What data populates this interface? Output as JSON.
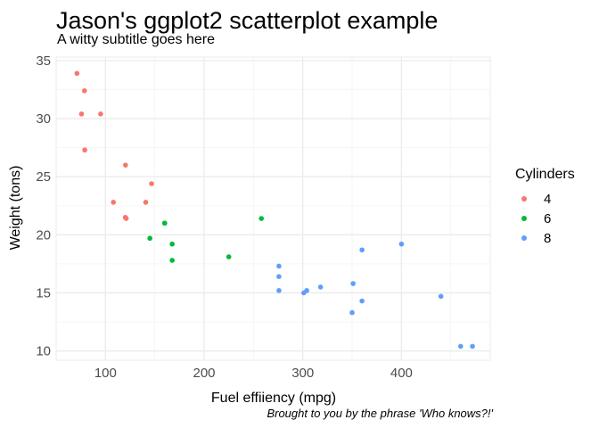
{
  "title": "Jason's ggplot2 scatterplot example",
  "subtitle": "A witty subtitle goes here",
  "caption": "Brought to you by the phrase 'Who knows?!'",
  "legend": {
    "title": "Cylinders",
    "items": [
      {
        "label": "4",
        "color": "#F8766D"
      },
      {
        "label": "6",
        "color": "#00BA38"
      },
      {
        "label": "8",
        "color": "#619CFF"
      }
    ]
  },
  "chart_data": {
    "type": "scatter",
    "xlabel": "Fuel effiiency (mpg)",
    "ylabel": "Weight (tons)",
    "xlim": [
      50,
      490
    ],
    "ylim": [
      9.2,
      35.3
    ],
    "x_ticks": [
      100,
      200,
      300,
      400
    ],
    "y_ticks": [
      10,
      15,
      20,
      25,
      30,
      35
    ],
    "grid": true,
    "legend_position": "right",
    "series": [
      {
        "name": "4",
        "color": "#F8766D",
        "points": [
          {
            "x": 71.1,
            "y": 33.9
          },
          {
            "x": 78.7,
            "y": 32.4
          },
          {
            "x": 75.7,
            "y": 30.4
          },
          {
            "x": 95.1,
            "y": 30.4
          },
          {
            "x": 79.0,
            "y": 27.3
          },
          {
            "x": 120.3,
            "y": 26.0
          },
          {
            "x": 146.7,
            "y": 24.4
          },
          {
            "x": 108.0,
            "y": 22.8
          },
          {
            "x": 140.8,
            "y": 22.8
          },
          {
            "x": 120.1,
            "y": 21.5
          },
          {
            "x": 121.0,
            "y": 21.4
          }
        ]
      },
      {
        "name": "6",
        "color": "#00BA38",
        "points": [
          {
            "x": 258.0,
            "y": 21.4
          },
          {
            "x": 160.0,
            "y": 21.0
          },
          {
            "x": 160.0,
            "y": 21.0
          },
          {
            "x": 145.0,
            "y": 19.7
          },
          {
            "x": 167.6,
            "y": 19.2
          },
          {
            "x": 225.0,
            "y": 18.1
          },
          {
            "x": 167.6,
            "y": 17.8
          }
        ]
      },
      {
        "name": "8",
        "color": "#619CFF",
        "points": [
          {
            "x": 400.0,
            "y": 19.2
          },
          {
            "x": 360.0,
            "y": 18.7
          },
          {
            "x": 275.8,
            "y": 17.3
          },
          {
            "x": 275.8,
            "y": 16.4
          },
          {
            "x": 351.0,
            "y": 15.8
          },
          {
            "x": 318.0,
            "y": 15.5
          },
          {
            "x": 275.8,
            "y": 15.2
          },
          {
            "x": 304.0,
            "y": 15.2
          },
          {
            "x": 301.0,
            "y": 15.0
          },
          {
            "x": 440.0,
            "y": 14.7
          },
          {
            "x": 360.0,
            "y": 14.3
          },
          {
            "x": 350.0,
            "y": 13.3
          },
          {
            "x": 472.0,
            "y": 10.4
          },
          {
            "x": 460.0,
            "y": 10.4
          }
        ]
      }
    ]
  }
}
